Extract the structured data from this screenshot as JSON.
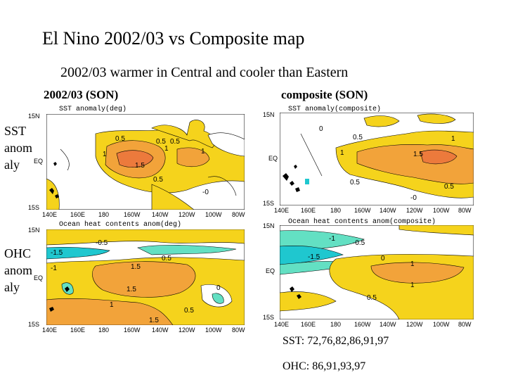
{
  "title": "El Nino 2002/03 vs Composite map",
  "subtitle": "2002/03  warmer in Central and cooler than Eastern",
  "left_header": "2002/03 (SON)",
  "right_header": "composite  (SON)",
  "row_labels": {
    "sst": [
      "SST",
      "anom",
      "aly"
    ],
    "ohc": [
      "OHC",
      "anom",
      "aly"
    ]
  },
  "maps": {
    "sst_2002": {
      "title": "SST  anomaly(deg)"
    },
    "sst_comp": {
      "title": "SST  anomaly(composite)"
    },
    "ohc_2002": {
      "title": "Ocean heat contents anom(deg)"
    },
    "ohc_comp": {
      "title": "Ocean heat contents anom(composite)"
    }
  },
  "lat_ticks": [
    "15N",
    "EQ",
    "15S"
  ],
  "lon_ticks": [
    "140E",
    "160E",
    "180",
    "160W",
    "140W",
    "120W",
    "100W",
    "80W"
  ],
  "contour_labels": {
    "sst_2002": [
      "0.5",
      "0.5",
      "1",
      "1",
      "1.5",
      "1",
      "0.5",
      "-0",
      "0.5"
    ],
    "sst_comp": [
      "0",
      "0.5",
      "1",
      "1.5",
      "1",
      "0.5",
      "0.5",
      "-0"
    ],
    "ohc_2002": [
      "-1.5",
      "-0.5",
      "-1",
      "1.5",
      "0.5",
      "1.5",
      "0",
      "0.5",
      "1.5",
      "1"
    ],
    "ohc_comp": [
      "-1",
      "-0.5",
      "-1.5",
      "0",
      "1",
      "1",
      "0.5"
    ]
  },
  "notes": {
    "sst_years": "SST: 72,76,82,86,91,97",
    "ohc_years": "OHC: 86,91,93,97"
  },
  "colors": {
    "positive_light": "#f5d31c",
    "positive_strong": "#f2a33a",
    "positive_max": "#ec7a3c",
    "negative_light": "#63e0c3",
    "negative_strong": "#1fc7cf"
  }
}
